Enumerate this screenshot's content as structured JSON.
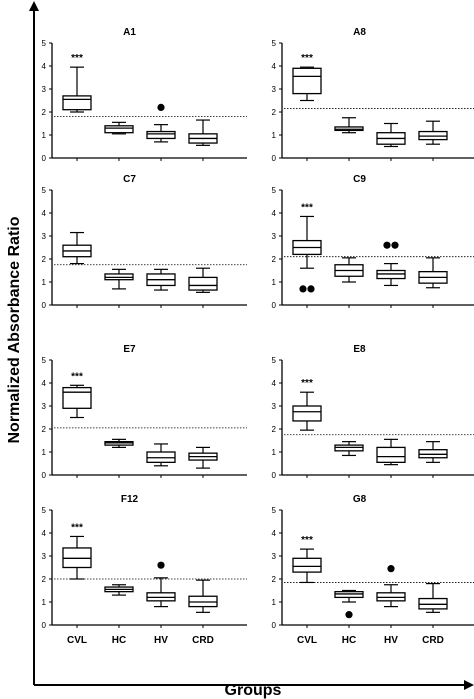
{
  "figure": {
    "ylabel": "Normalized Absorbance Ratio",
    "xlabel": "Groups"
  },
  "chart_data": [
    {
      "type": "box",
      "title": "A1",
      "categories": [
        "CVL",
        "HC",
        "HV",
        "CRD"
      ],
      "ylim": [
        0,
        5
      ],
      "yticks": [
        "0",
        "1",
        "2",
        "3",
        "4",
        "5"
      ],
      "threshold": 1.8,
      "annotation": "***",
      "annotation_category": "CVL",
      "show_xticklabels": false,
      "boxes": [
        {
          "category": "CVL",
          "min": 2.0,
          "q1": 2.1,
          "median": 2.55,
          "q3": 2.7,
          "max": 3.95,
          "outliers": []
        },
        {
          "category": "HC",
          "min": 1.05,
          "q1": 1.1,
          "median": 1.3,
          "q3": 1.4,
          "max": 1.55,
          "outliers": []
        },
        {
          "category": "HV",
          "min": 0.7,
          "q1": 0.85,
          "median": 1.05,
          "q3": 1.15,
          "max": 1.45,
          "outliers": [
            2.2
          ]
        },
        {
          "category": "CRD",
          "min": 0.55,
          "q1": 0.65,
          "median": 0.85,
          "q3": 1.05,
          "max": 1.65,
          "outliers": []
        }
      ]
    },
    {
      "type": "box",
      "title": "A8",
      "categories": [
        "CVL",
        "HC",
        "HV",
        "CRD"
      ],
      "ylim": [
        0,
        5
      ],
      "yticks": [
        "0",
        "1",
        "2",
        "3",
        "4",
        "5"
      ],
      "threshold": 2.15,
      "annotation": "***",
      "annotation_category": "CVL",
      "show_xticklabels": false,
      "boxes": [
        {
          "category": "CVL",
          "min": 2.5,
          "q1": 2.8,
          "median": 3.55,
          "q3": 3.9,
          "max": 3.95,
          "outliers": []
        },
        {
          "category": "HC",
          "min": 1.1,
          "q1": 1.2,
          "median": 1.25,
          "q3": 1.35,
          "max": 1.75,
          "outliers": []
        },
        {
          "category": "HV",
          "min": 0.5,
          "q1": 0.6,
          "median": 0.85,
          "q3": 1.1,
          "max": 1.5,
          "outliers": []
        },
        {
          "category": "CRD",
          "min": 0.6,
          "q1": 0.8,
          "median": 0.95,
          "q3": 1.15,
          "max": 1.6,
          "outliers": []
        }
      ]
    },
    {
      "type": "box",
      "title": "C7",
      "categories": [
        "CVL",
        "HC",
        "HV",
        "CRD"
      ],
      "ylim": [
        0,
        5
      ],
      "yticks": [
        "0",
        "1",
        "2",
        "3",
        "4",
        "5"
      ],
      "threshold": 1.75,
      "annotation": "",
      "annotation_category": "CVL",
      "show_xticklabels": false,
      "boxes": [
        {
          "category": "CVL",
          "min": 1.8,
          "q1": 2.1,
          "median": 2.35,
          "q3": 2.6,
          "max": 3.15,
          "outliers": []
        },
        {
          "category": "HC",
          "min": 0.7,
          "q1": 1.1,
          "median": 1.2,
          "q3": 1.35,
          "max": 1.55,
          "outliers": []
        },
        {
          "category": "HV",
          "min": 0.65,
          "q1": 0.85,
          "median": 1.1,
          "q3": 1.35,
          "max": 1.55,
          "outliers": []
        },
        {
          "category": "CRD",
          "min": 0.55,
          "q1": 0.65,
          "median": 0.85,
          "q3": 1.2,
          "max": 1.6,
          "outliers": []
        }
      ]
    },
    {
      "type": "box",
      "title": "C9",
      "categories": [
        "CVL",
        "HC",
        "HV",
        "CRD"
      ],
      "ylim": [
        0,
        5
      ],
      "yticks": [
        "0",
        "1",
        "2",
        "3",
        "4",
        "5"
      ],
      "threshold": 2.1,
      "annotation": "***",
      "annotation_category": "CVL",
      "show_xticklabels": false,
      "boxes": [
        {
          "category": "CVL",
          "min": 1.6,
          "q1": 2.2,
          "median": 2.5,
          "q3": 2.8,
          "max": 3.85,
          "outliers": [
            0.7,
            0.7
          ]
        },
        {
          "category": "HC",
          "min": 1.0,
          "q1": 1.25,
          "median": 1.5,
          "q3": 1.75,
          "max": 2.05,
          "outliers": []
        },
        {
          "category": "HV",
          "min": 0.85,
          "q1": 1.15,
          "median": 1.35,
          "q3": 1.5,
          "max": 1.8,
          "outliers": [
            2.6,
            2.6
          ]
        },
        {
          "category": "CRD",
          "min": 0.75,
          "q1": 0.95,
          "median": 1.2,
          "q3": 1.45,
          "max": 2.05,
          "outliers": []
        }
      ]
    },
    {
      "type": "box",
      "title": "E7",
      "categories": [
        "CVL",
        "HC",
        "HV",
        "CRD"
      ],
      "ylim": [
        0,
        5
      ],
      "yticks": [
        "0",
        "1",
        "2",
        "3",
        "4",
        "5"
      ],
      "threshold": 2.05,
      "annotation": "***",
      "annotation_category": "CVL",
      "show_xticklabels": false,
      "boxes": [
        {
          "category": "CVL",
          "min": 2.5,
          "q1": 2.9,
          "median": 3.6,
          "q3": 3.8,
          "max": 3.9,
          "outliers": []
        },
        {
          "category": "HC",
          "min": 1.2,
          "q1": 1.3,
          "median": 1.4,
          "q3": 1.45,
          "max": 1.55,
          "outliers": []
        },
        {
          "category": "HV",
          "min": 0.4,
          "q1": 0.55,
          "median": 0.75,
          "q3": 1.0,
          "max": 1.35,
          "outliers": []
        },
        {
          "category": "CRD",
          "min": 0.3,
          "q1": 0.65,
          "median": 0.8,
          "q3": 0.95,
          "max": 1.2,
          "outliers": []
        }
      ]
    },
    {
      "type": "box",
      "title": "E8",
      "categories": [
        "CVL",
        "HC",
        "HV",
        "CRD"
      ],
      "ylim": [
        0,
        5
      ],
      "yticks": [
        "0",
        "1",
        "2",
        "3",
        "4",
        "5"
      ],
      "threshold": 1.75,
      "annotation": "***",
      "annotation_category": "CVL",
      "show_xticklabels": false,
      "boxes": [
        {
          "category": "CVL",
          "min": 1.95,
          "q1": 2.35,
          "median": 2.75,
          "q3": 3.0,
          "max": 3.6,
          "outliers": []
        },
        {
          "category": "HC",
          "min": 0.85,
          "q1": 1.05,
          "median": 1.2,
          "q3": 1.3,
          "max": 1.45,
          "outliers": []
        },
        {
          "category": "HV",
          "min": 0.45,
          "q1": 0.55,
          "median": 0.8,
          "q3": 1.2,
          "max": 1.55,
          "outliers": []
        },
        {
          "category": "CRD",
          "min": 0.55,
          "q1": 0.75,
          "median": 0.9,
          "q3": 1.1,
          "max": 1.45,
          "outliers": []
        }
      ]
    },
    {
      "type": "box",
      "title": "F12",
      "categories": [
        "CVL",
        "HC",
        "HV",
        "CRD"
      ],
      "ylim": [
        0,
        5
      ],
      "yticks": [
        "0",
        "1",
        "2",
        "3",
        "4",
        "5"
      ],
      "threshold": 2.0,
      "annotation": "***",
      "annotation_category": "CVL",
      "show_xticklabels": true,
      "boxes": [
        {
          "category": "CVL",
          "min": 2.0,
          "q1": 2.5,
          "median": 2.9,
          "q3": 3.35,
          "max": 3.85,
          "outliers": []
        },
        {
          "category": "HC",
          "min": 1.3,
          "q1": 1.45,
          "median": 1.55,
          "q3": 1.65,
          "max": 1.75,
          "outliers": []
        },
        {
          "category": "HV",
          "min": 0.8,
          "q1": 1.05,
          "median": 1.2,
          "q3": 1.4,
          "max": 2.05,
          "outliers": [
            2.6
          ]
        },
        {
          "category": "CRD",
          "min": 0.55,
          "q1": 0.8,
          "median": 1.0,
          "q3": 1.25,
          "max": 1.95,
          "outliers": []
        }
      ]
    },
    {
      "type": "box",
      "title": "G8",
      "categories": [
        "CVL",
        "HC",
        "HV",
        "CRD"
      ],
      "ylim": [
        0,
        5
      ],
      "yticks": [
        "0",
        "1",
        "2",
        "3",
        "4",
        "5"
      ],
      "threshold": 1.85,
      "annotation": "***",
      "annotation_category": "CVL",
      "show_xticklabels": true,
      "boxes": [
        {
          "category": "CVL",
          "min": 1.85,
          "q1": 2.3,
          "median": 2.55,
          "q3": 2.9,
          "max": 3.3,
          "outliers": []
        },
        {
          "category": "HC",
          "min": 1.0,
          "q1": 1.2,
          "median": 1.35,
          "q3": 1.45,
          "max": 1.5,
          "outliers": [
            0.45
          ]
        },
        {
          "category": "HV",
          "min": 0.8,
          "q1": 1.05,
          "median": 1.2,
          "q3": 1.4,
          "max": 1.75,
          "outliers": [
            2.45
          ]
        },
        {
          "category": "CRD",
          "min": 0.55,
          "q1": 0.7,
          "median": 0.9,
          "q3": 1.15,
          "max": 1.8,
          "outliers": []
        }
      ]
    }
  ]
}
